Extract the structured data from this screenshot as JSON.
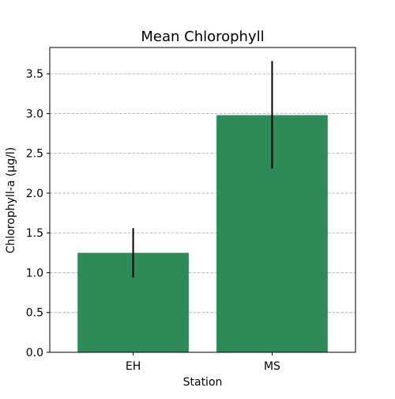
{
  "chart_data": {
    "type": "bar",
    "title": "Mean Chlorophyll",
    "xlabel": "Station",
    "ylabel": "Chlorophyll-a (µg/l)",
    "categories": [
      "EH",
      "MS"
    ],
    "values": [
      1.25,
      2.98
    ],
    "error": [
      {
        "low": 0.94,
        "high": 1.56
      },
      {
        "low": 2.31,
        "high": 3.66
      }
    ],
    "ylim": [
      0,
      3.83
    ],
    "yticks": [
      0.0,
      0.5,
      1.0,
      1.5,
      2.0,
      2.5,
      3.0,
      3.5
    ],
    "ytick_labels": [
      "0.0",
      "0.5",
      "1.0",
      "1.5",
      "2.0",
      "2.5",
      "3.0",
      "3.5"
    ],
    "grid": "y-dashed",
    "legend": "none",
    "colors": {
      "bar": "#2e8b57",
      "error": "#000000",
      "grid": "#b0b0b0"
    }
  }
}
